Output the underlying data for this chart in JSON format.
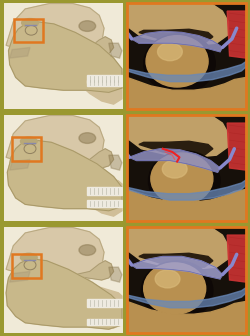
{
  "figsize": [
    2.5,
    3.36
  ],
  "dpi": 100,
  "bg_color": "#9a9830",
  "row_separator_color": "#9a9830",
  "highlight_box_color": "#E07820",
  "detail_border_color": "#E07820",
  "skull_bg": "#e8dcc8",
  "skull_bone_light": "#d4c4a0",
  "skull_bone_mid": "#c0a878",
  "skull_bone_dark": "#a08858",
  "skull_shadow": "#6a5838",
  "teeth_color": "#e8e8e0",
  "teeth_sep": "#c8c8c0",
  "detail_bg": "#1a1208",
  "condyle_color": "#c8a860",
  "condyle_highlight": "#e0c898",
  "socket_color": "#c0a060",
  "disc_color": "#9898c8",
  "disc_edge": "#7878a8",
  "ligament_color": "#8888cc",
  "muscle_color": "#cc3333",
  "lower_bone_color": "#b89050",
  "lower_disc_color": "#6888b0",
  "rows": 3
}
